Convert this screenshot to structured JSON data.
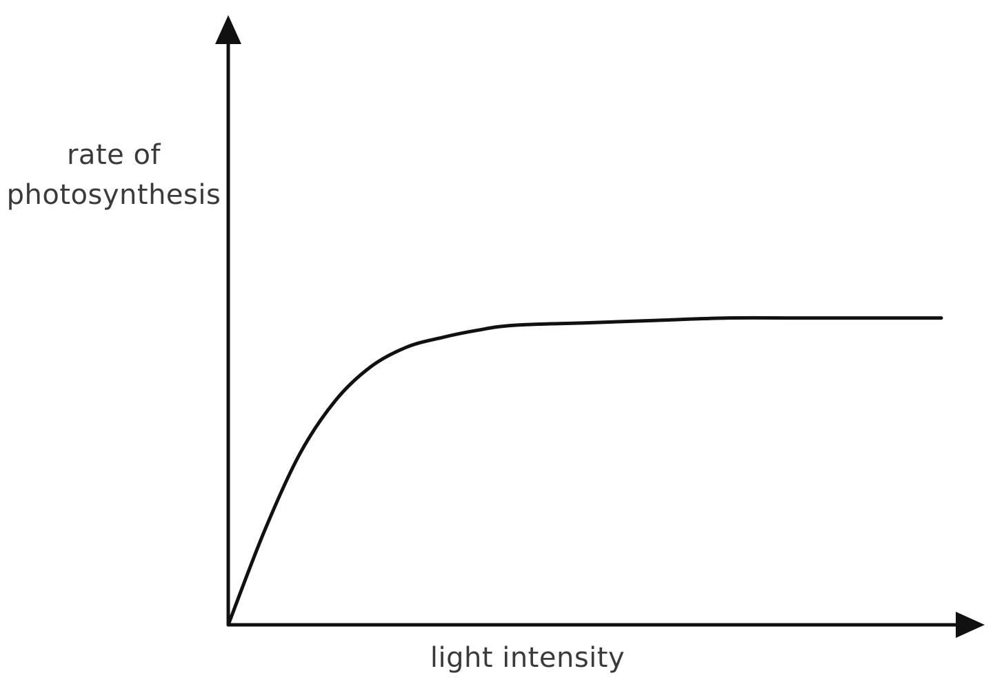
{
  "chart_data": {
    "type": "line",
    "title": "",
    "xlabel": "light intensity",
    "ylabel_lines": [
      "rate of",
      "photosynthesis"
    ],
    "xlim": [
      0,
      10
    ],
    "ylim": [
      0,
      10
    ],
    "grid": false,
    "legend": "none",
    "series": [
      {
        "x": [
          0,
          0.5,
          1.0,
          1.5,
          2.0,
          2.5,
          3.0,
          3.5,
          4.0,
          5.0,
          6.0,
          7.0,
          8.0,
          9.0,
          10.0
        ],
        "values": [
          0.0,
          1.9,
          3.5,
          4.6,
          5.3,
          5.7,
          5.9,
          6.05,
          6.15,
          6.2,
          6.25,
          6.3,
          6.3,
          6.3,
          6.3
        ],
        "color": "#111111"
      }
    ]
  }
}
